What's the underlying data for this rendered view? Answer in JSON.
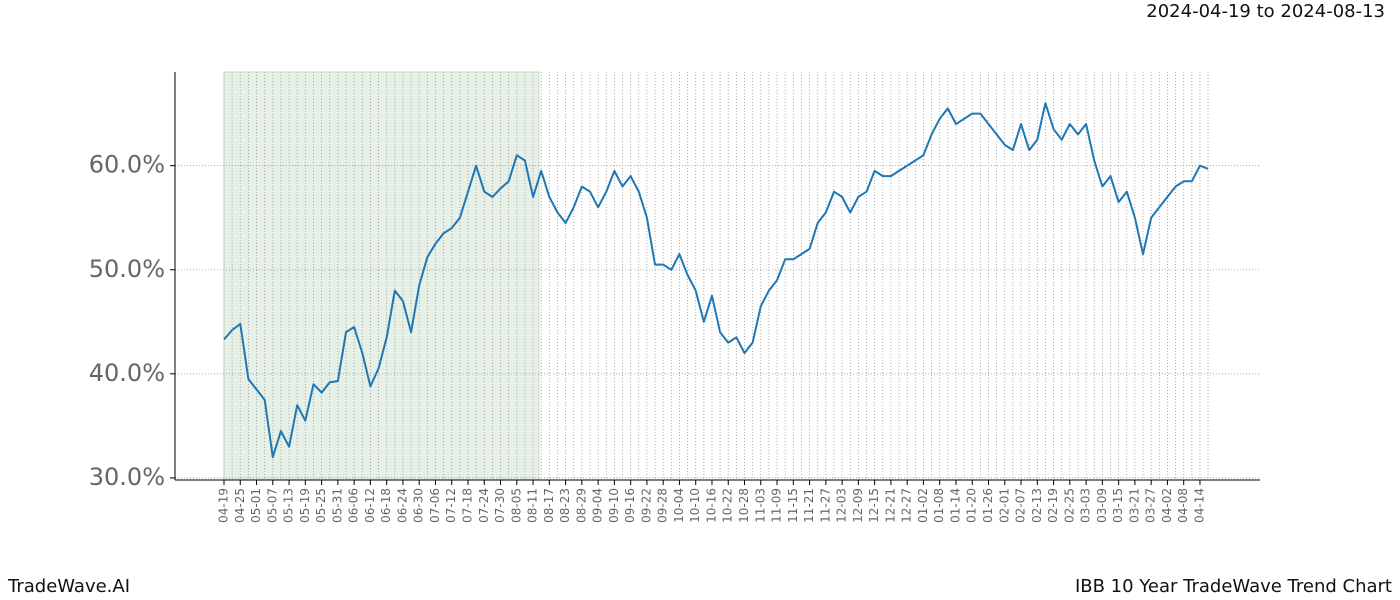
{
  "chart_data": {
    "type": "line",
    "title": "IBB 10 Year TradeWave Trend Chart",
    "date_range": "2024-04-19 to 2024-08-13",
    "brand": "TradeWave.AI",
    "categories": [
      "04-19",
      null,
      "04-25",
      null,
      "05-01",
      null,
      "05-07",
      null,
      "05-13",
      null,
      "05-19",
      null,
      "05-25",
      null,
      "05-31",
      null,
      "06-06",
      null,
      "06-12",
      null,
      "06-18",
      null,
      "06-24",
      null,
      "06-30",
      null,
      "07-06",
      null,
      "07-12",
      null,
      "07-18",
      null,
      "07-24",
      null,
      "07-30",
      null,
      "08-05",
      null,
      "08-11",
      null,
      "08-17",
      null,
      "08-23",
      null,
      "08-29",
      null,
      "09-04",
      null,
      "09-10",
      null,
      "09-16",
      null,
      "09-22",
      null,
      "09-28",
      null,
      "10-04",
      null,
      "10-10",
      null,
      "10-16",
      null,
      "10-22",
      null,
      "10-28",
      null,
      "11-03",
      null,
      "11-09",
      null,
      "11-15",
      null,
      "11-21",
      null,
      "11-27",
      null,
      "12-03",
      null,
      "12-09",
      null,
      "12-15",
      null,
      "12-21",
      null,
      "12-27",
      null,
      "01-02",
      null,
      "01-08",
      null,
      "01-14",
      null,
      "01-20",
      null,
      "01-26",
      null,
      "02-01",
      null,
      "02-07",
      null,
      "02-13",
      null,
      "02-19",
      null,
      "02-25",
      null,
      "03-03",
      null,
      "03-09",
      null,
      "03-15",
      null,
      "03-21",
      null,
      "03-27",
      null,
      "04-02",
      null,
      "04-08",
      null,
      "04-14",
      null
    ],
    "values": [
      43.3,
      44.2,
      44.8,
      39.5,
      38.5,
      37.5,
      32.0,
      34.5,
      33.0,
      37.0,
      35.5,
      39.0,
      38.2,
      39.2,
      39.3,
      44.0,
      44.5,
      42.0,
      38.8,
      40.5,
      43.5,
      48.0,
      47.0,
      44.0,
      48.5,
      51.2,
      52.5,
      53.5,
      54.0,
      55.0,
      57.5,
      60.0,
      57.5,
      57.0,
      57.8,
      58.5,
      61.0,
      60.5,
      57.0,
      59.5,
      57.0,
      55.5,
      54.5,
      56.0,
      58.0,
      57.5,
      56.0,
      57.5,
      59.5,
      58.0,
      59.0,
      57.5,
      55.0,
      50.5,
      50.5,
      50.0,
      51.5,
      49.5,
      48.0,
      45.0,
      47.5,
      44.0,
      43.0,
      43.5,
      42.0,
      43.0,
      46.5,
      48.0,
      49.0,
      51.0,
      51.0,
      51.5,
      52.0,
      54.5,
      55.5,
      57.5,
      57.0,
      55.5,
      57.0,
      57.5,
      59.5,
      59.0,
      59.0,
      59.5,
      60.0,
      60.5,
      61.0,
      63.0,
      64.5,
      65.5,
      64.0,
      64.5,
      65.0,
      65.0,
      64.0,
      63.0,
      62.0,
      61.5,
      64.0,
      61.5,
      62.5,
      66.0,
      63.5,
      62.5,
      64.0,
      63.0,
      64.0,
      60.5,
      58.0,
      59.0,
      56.5,
      57.5,
      55.0,
      51.5,
      55.0,
      56.0,
      57.0,
      58.0,
      58.5,
      58.5,
      60.0,
      59.7
    ],
    "color": "#1f77b4",
    "ylim": [
      29.8,
      69.0
    ],
    "yticks": [
      {
        "value": 30,
        "label": "30.0%"
      },
      {
        "value": 40,
        "label": "40.0%"
      },
      {
        "value": 50,
        "label": "50.0%"
      },
      {
        "value": 60,
        "label": "60.0%"
      }
    ],
    "grid": true
  }
}
